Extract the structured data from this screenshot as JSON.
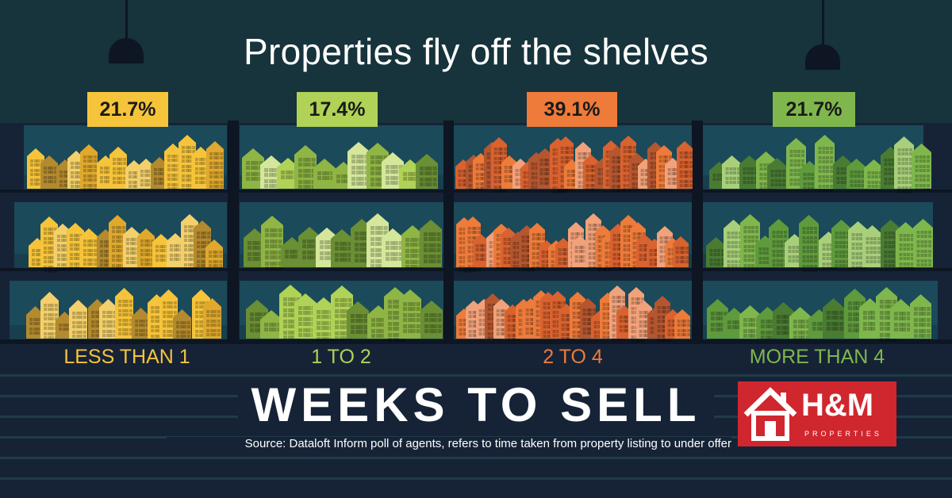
{
  "title": "Properties fly off the shelves",
  "colors": {
    "background": "#162337",
    "ceiling": "#17333b",
    "shelf_panel": "#1b4a5a",
    "less_than_1": "#f6c43a",
    "1_to_2": "#b0d256",
    "2_to_4": "#ee7b3a",
    "more_than_4": "#7fb74d",
    "logo_red": "#d0262e"
  },
  "chart_data": {
    "type": "bar",
    "categories": [
      "LESS THAN 1",
      "1 TO 2",
      "2 TO 4",
      "MORE THAN 4"
    ],
    "values": [
      21.7,
      17.4,
      39.1,
      21.7
    ],
    "value_labels": [
      "21.7%",
      "17.4%",
      "39.1%",
      "21.7%"
    ],
    "unit": "%",
    "title": "Properties fly off the shelves",
    "xlabel": "WEEKS TO SELL",
    "ylabel": ""
  },
  "footer": {
    "axis_title": "WEEKS TO SELL",
    "source": "Source: Dataloft Inform poll of agents, refers to time taken from property listing to under offer"
  },
  "logo": {
    "name": "H&M",
    "tagline": "PROPERTIES",
    "icon": "house-icon"
  }
}
